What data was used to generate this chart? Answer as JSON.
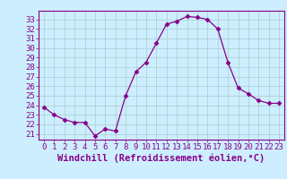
{
  "x": [
    0,
    1,
    2,
    3,
    4,
    5,
    6,
    7,
    8,
    9,
    10,
    11,
    12,
    13,
    14,
    15,
    16,
    17,
    18,
    19,
    20,
    21,
    22,
    23
  ],
  "y": [
    23.8,
    23.0,
    22.5,
    22.2,
    22.2,
    20.8,
    21.5,
    21.3,
    25.0,
    27.5,
    28.5,
    30.5,
    32.5,
    32.8,
    33.3,
    33.2,
    33.0,
    32.0,
    28.5,
    25.8,
    25.2,
    24.5,
    24.2,
    24.2
  ],
  "line_color": "#880088",
  "marker": "D",
  "marker_size": 2.5,
  "bg_color": "#cceeff",
  "grid_color": "#aacccc",
  "xlabel": "Windchill (Refroidissement éolien,°C)",
  "xlabel_fontsize": 7.5,
  "xtick_labels": [
    "0",
    "1",
    "2",
    "3",
    "4",
    "5",
    "6",
    "7",
    "8",
    "9",
    "10",
    "11",
    "12",
    "13",
    "14",
    "15",
    "16",
    "17",
    "18",
    "19",
    "20",
    "21",
    "22",
    "23"
  ],
  "ytick_labels": [
    "21",
    "22",
    "23",
    "24",
    "25",
    "26",
    "27",
    "28",
    "29",
    "30",
    "31",
    "32",
    "33"
  ],
  "ylim": [
    20.4,
    33.9
  ],
  "xlim": [
    -0.5,
    23.5
  ],
  "tick_fontsize": 6.5,
  "separator_color": "#880088",
  "label_bg_color": "#cceeff"
}
